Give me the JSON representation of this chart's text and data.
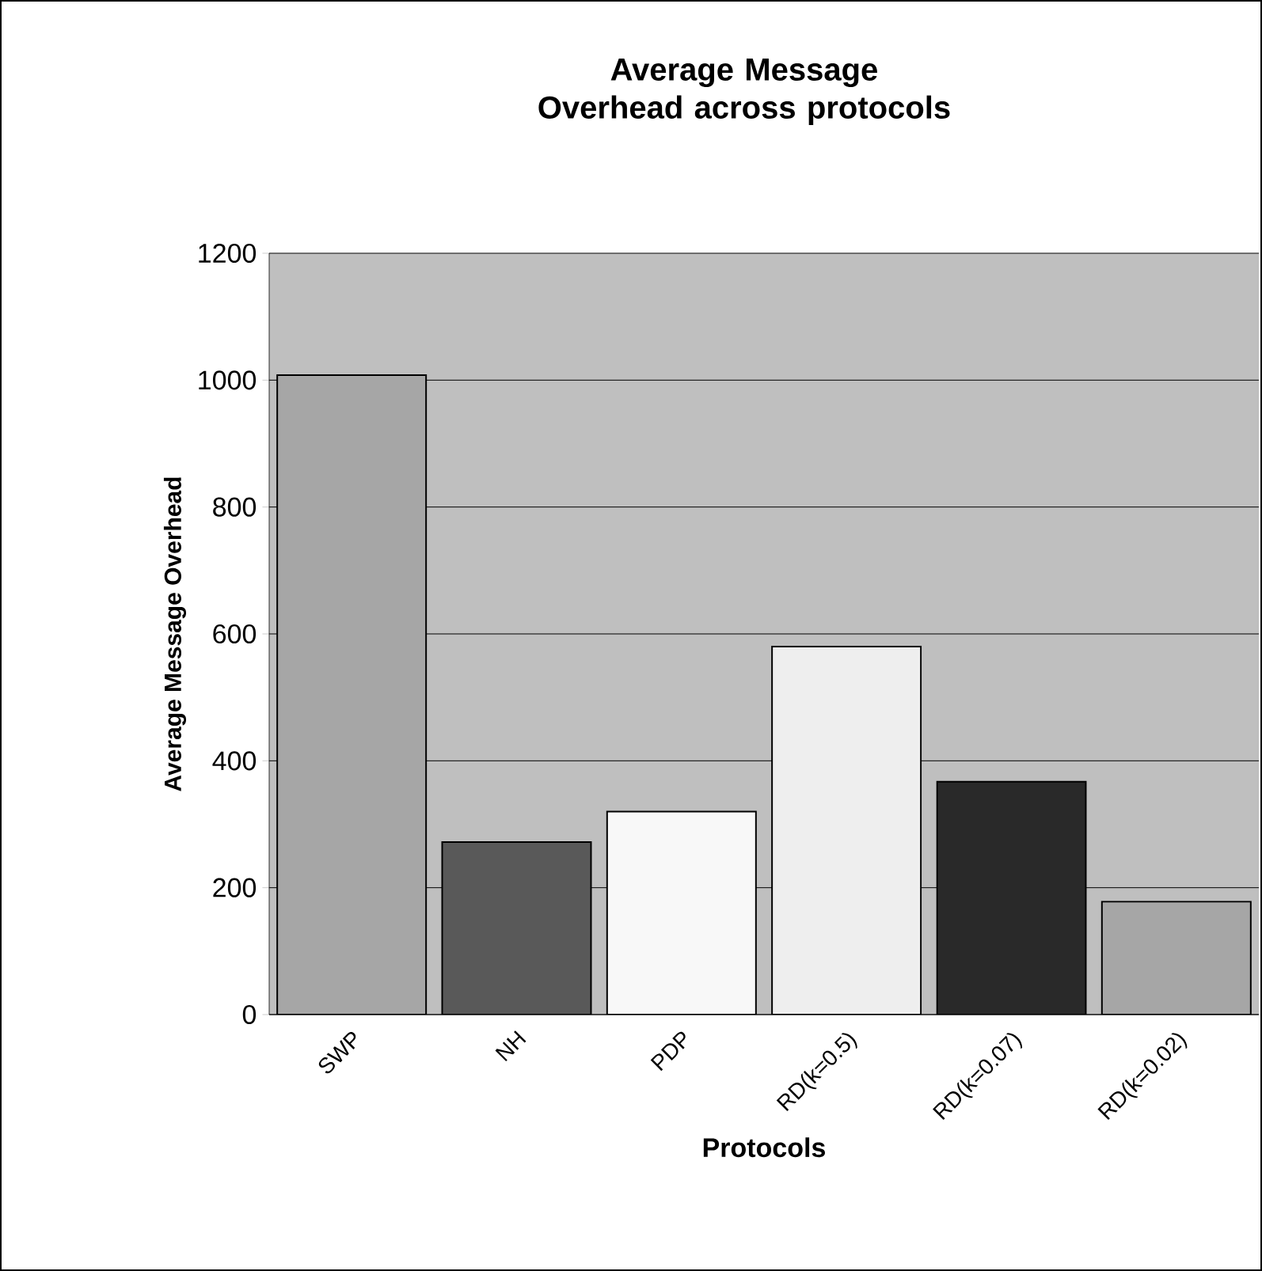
{
  "chart_data": {
    "type": "bar",
    "title": "Average Message Overhead across protocols",
    "xlabel": "Protocols",
    "ylabel": "Average Message Overhead",
    "categories": [
      "SWP",
      "NH",
      "PDP",
      "RD(k=0.5)",
      "RD(k=0.07)",
      "RD(k=0.02)"
    ],
    "values": [
      1008,
      272,
      320,
      580,
      367,
      178
    ],
    "colors": [
      "#a6a6a6",
      "#595959",
      "#f8f8f8",
      "#eeeeee",
      "#292929",
      "#a6a6a6"
    ],
    "ylim": [
      0,
      1200
    ],
    "yticks": [
      0,
      200,
      400,
      600,
      800,
      1000,
      1200
    ],
    "grid": "y"
  }
}
